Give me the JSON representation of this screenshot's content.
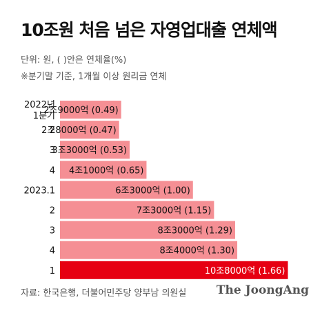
{
  "header": {
    "title": "10조원 처음 넘은 자영업대출 연체액",
    "unit_note": "단위: 원, ( )안은 연체율(%)",
    "basis_note": "※분기말 기준, 1개월 이상 원리금 연체"
  },
  "footer": {
    "source": "자료: 한국은행, 더불어민주당 양부남 의원실",
    "logo": "The JoongAng"
  },
  "colors": {
    "bar": "#f58f94",
    "highlight": "#e60012",
    "highlight_text": "#ffffff",
    "label_text": "#111111"
  },
  "chart_data": {
    "type": "bar",
    "orientation": "horizontal",
    "categories": [
      [
        "2022년",
        "1분기"
      ],
      [
        "2"
      ],
      [
        "3"
      ],
      [
        "4"
      ],
      [
        "2023.1"
      ],
      [
        "2"
      ],
      [
        "3"
      ],
      [
        "4"
      ],
      [
        "1"
      ]
    ],
    "values": [
      2.9,
      2.8,
      3.3,
      4.1,
      6.3,
      7.3,
      8.3,
      8.4,
      10.8
    ],
    "value_labels": [
      "2조9000억 (0.49)",
      "2조8000억 (0.47)",
      "3조3000억 (0.53)",
      "4조1000억 (0.65)",
      "6조3000억 (1.00)",
      "7조3000억 (1.15)",
      "8조3000억 (1.29)",
      "8조4000억 (1.30)",
      "10조8000억 (1.66)"
    ],
    "delinquency_rate_pct": [
      0.49,
      0.47,
      0.53,
      0.65,
      1.0,
      1.15,
      1.29,
      1.3,
      1.66
    ],
    "value_unit": "조원",
    "highlight_index": 8,
    "grid": false
  }
}
